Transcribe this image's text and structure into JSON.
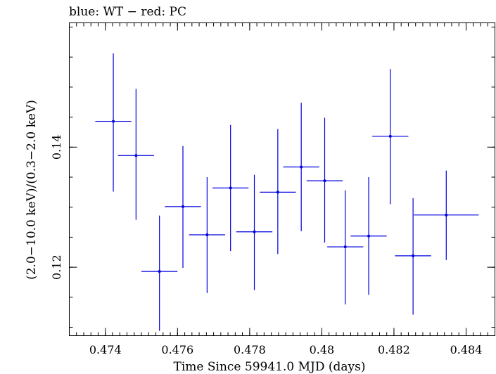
{
  "chart_data": {
    "type": "scatter",
    "title": "blue: WT − red: PC",
    "xlabel": "Time Since 59941.0 MJD (days)",
    "ylabel": "(2.0−10.0 keV)/(0.3−2.0 keV)",
    "xlim": [
      0.473,
      0.4848
    ],
    "ylim": [
      0.1086,
      0.1607
    ],
    "x_ticks": [
      {
        "value": 0.474,
        "label": "0.474"
      },
      {
        "value": 0.476,
        "label": "0.476"
      },
      {
        "value": 0.478,
        "label": "0.478"
      },
      {
        "value": 0.48,
        "label": "0.48"
      },
      {
        "value": 0.482,
        "label": "0.482"
      },
      {
        "value": 0.484,
        "label": "0.484"
      }
    ],
    "y_ticks": [
      {
        "value": 0.12,
        "label": "0.12"
      },
      {
        "value": 0.14,
        "label": "0.14"
      }
    ],
    "x_minor_step": 0.0002,
    "y_minor_step": 0.005,
    "grid": false,
    "series": [
      {
        "color": "#0000dd",
        "points": [
          {
            "x": 0.47422,
            "xerr": 0.0005,
            "y": 0.1443,
            "yerr_lo": 0.0117,
            "yerr_hi": 0.0113
          },
          {
            "x": 0.47485,
            "xerr": 0.0005,
            "y": 0.1386,
            "yerr_lo": 0.0107,
            "yerr_hi": 0.0111
          },
          {
            "x": 0.4755,
            "xerr": 0.0005,
            "y": 0.1193,
            "yerr_lo": 0.0099,
            "yerr_hi": 0.0093
          },
          {
            "x": 0.47615,
            "xerr": 0.0005,
            "y": 0.1301,
            "yerr_lo": 0.0102,
            "yerr_hi": 0.0101
          },
          {
            "x": 0.47682,
            "xerr": 0.0005,
            "y": 0.1254,
            "yerr_lo": 0.0097,
            "yerr_hi": 0.0096
          },
          {
            "x": 0.47747,
            "xerr": 0.0005,
            "y": 0.1332,
            "yerr_lo": 0.0105,
            "yerr_hi": 0.0105
          },
          {
            "x": 0.47813,
            "xerr": 0.0005,
            "y": 0.1259,
            "yerr_lo": 0.0097,
            "yerr_hi": 0.0095
          },
          {
            "x": 0.47878,
            "xerr": 0.0005,
            "y": 0.1325,
            "yerr_lo": 0.0103,
            "yerr_hi": 0.0105
          },
          {
            "x": 0.47943,
            "xerr": 0.0005,
            "y": 0.1367,
            "yerr_lo": 0.0107,
            "yerr_hi": 0.0107
          },
          {
            "x": 0.48008,
            "xerr": 0.0005,
            "y": 0.1344,
            "yerr_lo": 0.0103,
            "yerr_hi": 0.0105
          },
          {
            "x": 0.48065,
            "xerr": 0.0005,
            "y": 0.1234,
            "yerr_lo": 0.0096,
            "yerr_hi": 0.0094
          },
          {
            "x": 0.4813,
            "xerr": 0.0005,
            "y": 0.1252,
            "yerr_lo": 0.0098,
            "yerr_hi": 0.0098
          },
          {
            "x": 0.4819,
            "xerr": 0.0005,
            "y": 0.1418,
            "yerr_lo": 0.0113,
            "yerr_hi": 0.0112
          },
          {
            "x": 0.48253,
            "xerr": 0.0005,
            "y": 0.1219,
            "yerr_lo": 0.0098,
            "yerr_hi": 0.0096
          },
          {
            "x": 0.48345,
            "xerr": 0.0009,
            "y": 0.1287,
            "yerr_lo": 0.0075,
            "yerr_hi": 0.0074
          }
        ]
      }
    ]
  }
}
